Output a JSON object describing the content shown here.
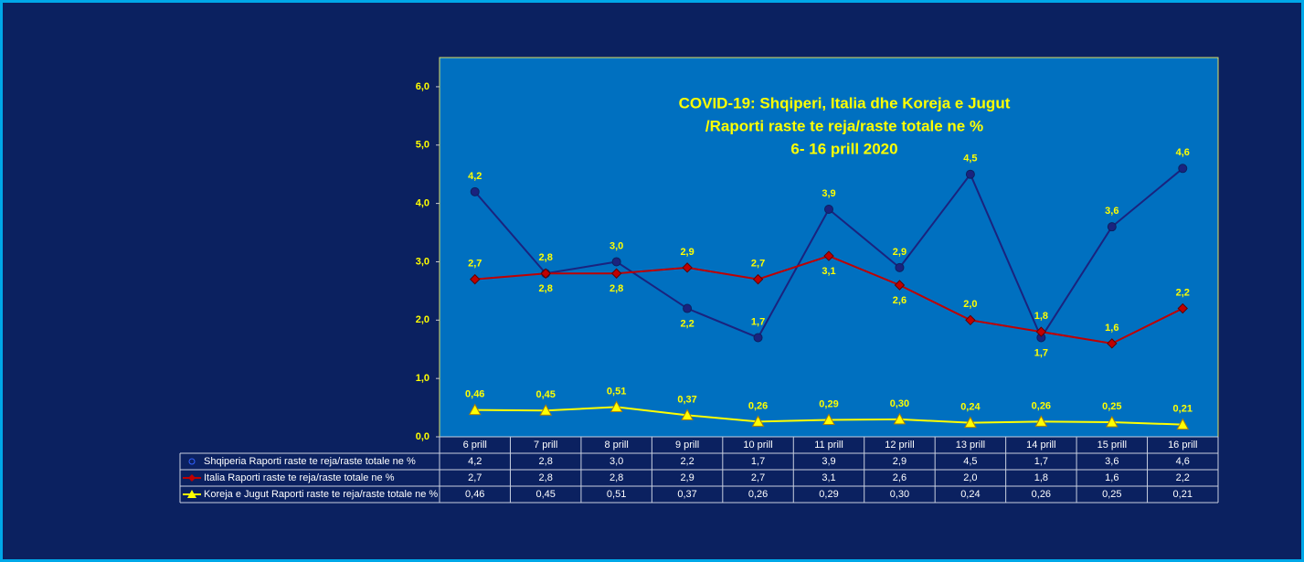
{
  "chart_data": {
    "type": "line",
    "title": [
      "COVID-19: Shqiperi, Italia dhe Koreja e Jugut",
      "/Raporti raste te reja/raste totale ne %",
      "6- 16 prill 2020"
    ],
    "categories": [
      "6 prill",
      "7 prill",
      "8 prill",
      "9 prill",
      "10 prill",
      "11 prill",
      "12 prill",
      "13 prill",
      "14 prill",
      "15 prill",
      "16 prill"
    ],
    "ylim": [
      0,
      6.5
    ],
    "yticks": [
      {
        "value": 0,
        "label": "0,0"
      },
      {
        "value": 1,
        "label": "1,0"
      },
      {
        "value": 2,
        "label": "2,0"
      },
      {
        "value": 3,
        "label": "3,0"
      },
      {
        "value": 4,
        "label": "4,0"
      },
      {
        "value": 5,
        "label": "5,0"
      },
      {
        "value": 6,
        "label": "6,0"
      }
    ],
    "series": [
      {
        "name": "Shqiperia Raporti raste te reja/raste totale ne %",
        "color": "#1a237e",
        "marker": "circle",
        "values": [
          4.2,
          2.8,
          3.0,
          2.2,
          1.7,
          3.9,
          2.9,
          4.5,
          1.7,
          3.6,
          4.6
        ],
        "value_labels": [
          "4,2",
          "2,8",
          "3,0",
          "2,2",
          "1,7",
          "3,9",
          "2,9",
          "4,5",
          "1,7",
          "3,6",
          "4,6"
        ]
      },
      {
        "name": "Italia Raporti raste te reja/raste totale ne %",
        "color": "#c00000",
        "marker": "diamond",
        "values": [
          2.7,
          2.8,
          2.8,
          2.9,
          2.7,
          3.1,
          2.6,
          2.0,
          1.8,
          1.6,
          2.2
        ],
        "value_labels": [
          "2,7",
          "2,8",
          "2,8",
          "2,9",
          "2,7",
          "3,1",
          "2,6",
          "2,0",
          "1,8",
          "1,6",
          "2,2"
        ]
      },
      {
        "name": "Koreja e Jugut Raporti raste te reja/raste totale ne %",
        "color": "#ffff00",
        "marker": "triangle",
        "values": [
          0.46,
          0.45,
          0.51,
          0.37,
          0.26,
          0.29,
          0.3,
          0.24,
          0.26,
          0.25,
          0.21
        ],
        "value_labels": [
          "0,46",
          "0,45",
          "0,51",
          "0,37",
          "0,26",
          "0,29",
          "0,30",
          "0,24",
          "0,26",
          "0,25",
          "0,21"
        ]
      }
    ]
  }
}
